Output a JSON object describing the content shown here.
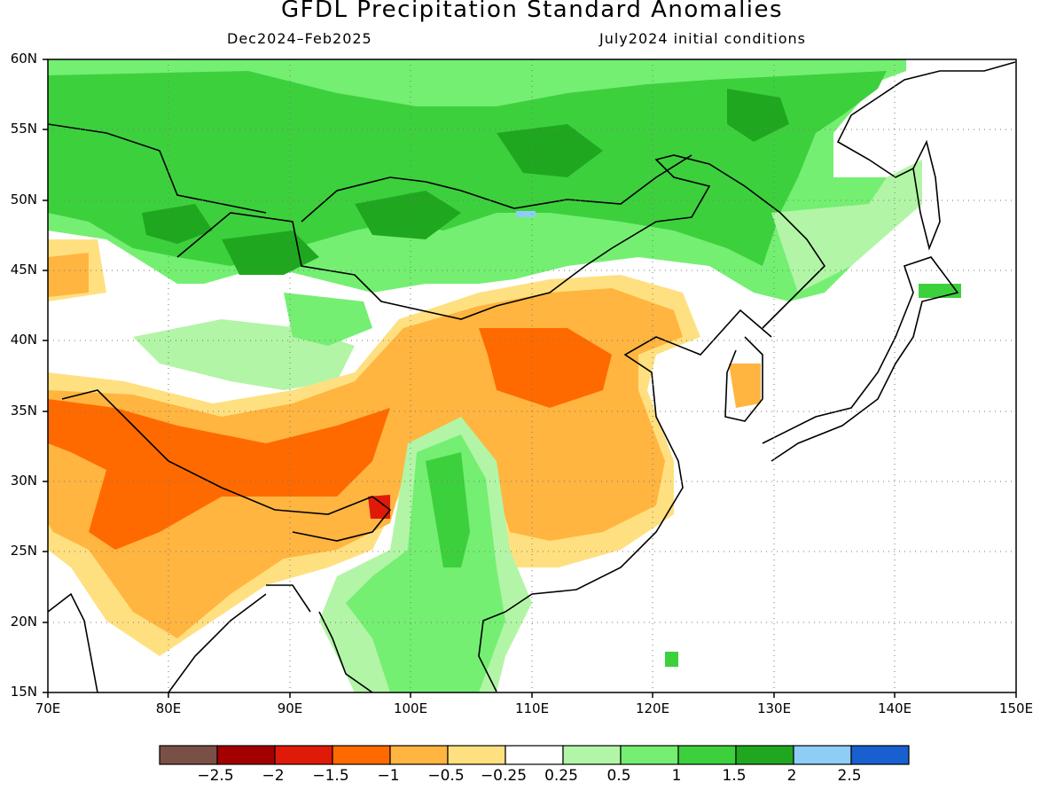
{
  "header": {
    "title": "GFDL Precipitation Standard Anomalies",
    "period": "Dec2024–Feb2025",
    "initial_conditions": "July2024 initial conditions"
  },
  "axes": {
    "lat_labels": [
      "60N",
      "55N",
      "50N",
      "45N",
      "40N",
      "35N",
      "30N",
      "25N",
      "20N",
      "15N"
    ],
    "lat_values": [
      60,
      55,
      50,
      45,
      40,
      35,
      30,
      25,
      20,
      15
    ],
    "lon_labels": [
      "70E",
      "80E",
      "90E",
      "100E",
      "110E",
      "120E",
      "130E",
      "140E",
      "150E"
    ],
    "lon_values": [
      70,
      80,
      90,
      100,
      110,
      120,
      130,
      140,
      150
    ],
    "lon_range": [
      70,
      150
    ],
    "lat_range": [
      15,
      60
    ],
    "grid": "dotted"
  },
  "colorbar": {
    "labels": [
      "−2.5",
      "−2",
      "−1.5",
      "−1",
      "−0.5",
      "−0.25",
      "0.25",
      "0.5",
      "1",
      "1.5",
      "2",
      "2.5"
    ],
    "colors": [
      "#7a5046",
      "#a40000",
      "#e01a08",
      "#ff6a00",
      "#ffb540",
      "#ffe080",
      "#ffffff",
      "#b2f5a6",
      "#74ef72",
      "#3dd03d",
      "#1fa81f",
      "#8ecdf5",
      "#1860d0"
    ]
  },
  "map": {
    "colors": {
      "brown": "#7a5046",
      "dark_red": "#a40000",
      "red": "#e01a08",
      "orange": "#ff6a00",
      "light_orange": "#ffb540",
      "yellow": "#ffe080",
      "white": "#ffffff",
      "pale_green": "#b2f5a6",
      "light_green": "#74ef72",
      "green": "#3dd03d",
      "dark_green": "#1fa81f",
      "light_blue": "#8ecdf5",
      "blue": "#1860d0"
    }
  }
}
